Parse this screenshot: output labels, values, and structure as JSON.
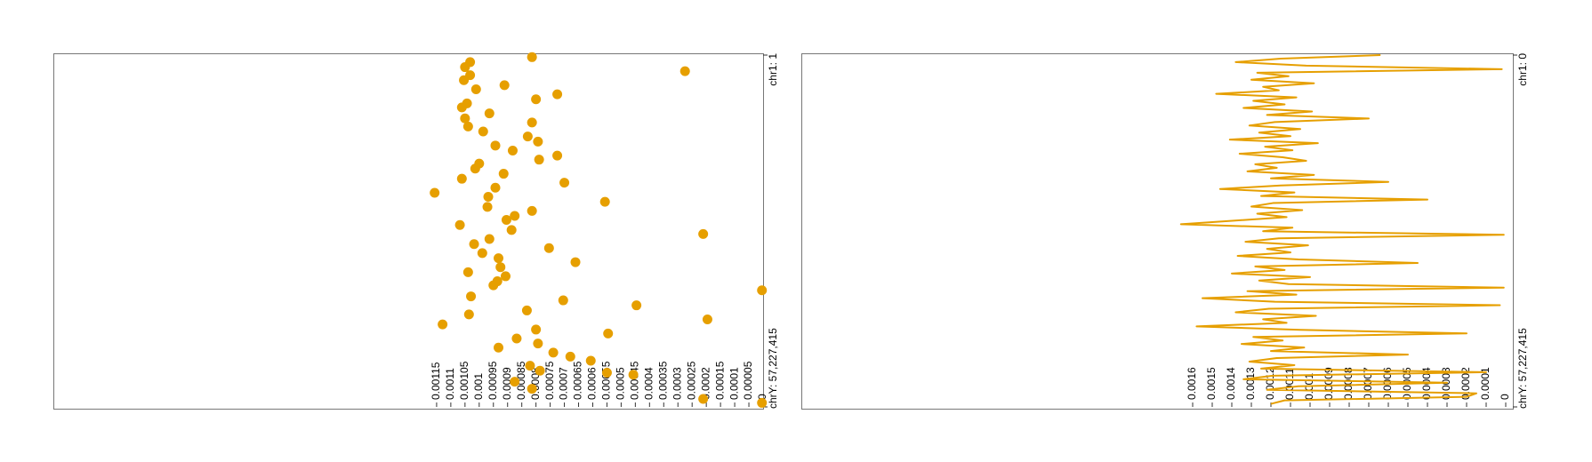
{
  "chart_data": [
    {
      "type": "scatter",
      "color": "#E69F00",
      "xlim": [
        0.0025,
        0
      ],
      "xticks": [
        0.00115,
        0.0011,
        0.00105,
        0.001,
        0.00095,
        0.0009,
        0.00085,
        0.0008,
        0.00075,
        0.0007,
        0.00065,
        0.0006,
        0.00055,
        0.0005,
        0.00045,
        0.0004,
        0.00035,
        0.0003,
        0.00025,
        0.0002,
        0.00015,
        0.0001,
        5e-05,
        0
      ],
      "ylim": [
        1,
        3095677412
      ],
      "yticks": [
        {
          "value": 1,
          "label": "chr1: 1"
        },
        {
          "value": 3095677412,
          "label": "chrY: 57,227,415"
        }
      ],
      "x": [
        18000000,
        62000000,
        106000000,
        177000000,
        221000000,
        265000000,
        142000000,
        301000000,
        345000000,
        389000000,
        425000000,
        460000000,
        513000000,
        557000000,
        593000000,
        628000000,
        672000000,
        716000000,
        761000000,
        796000000,
        840000000,
        884000000,
        920000000,
        955000000,
        999000000,
        1044000000,
        1088000000,
        1123000000,
        1167000000,
        1212000000,
        1247000000,
        1291000000,
        1336000000,
        1371000000,
        1415000000,
        1450000000,
        1495000000,
        1539000000,
        1574000000,
        1618000000,
        1663000000,
        1698000000,
        1742000000,
        1787000000,
        1822000000,
        1866000000,
        1910000000,
        1946000000,
        1990000000,
        2026000000,
        2070000000,
        2123000000,
        2158000000,
        2202000000,
        2247000000,
        2282000000,
        2326000000,
        2370000000,
        2415000000,
        2450000000,
        2494000000,
        2538000000,
        2574000000,
        2618000000,
        2653000000,
        2689000000,
        2733000000,
        2777000000,
        2795000000,
        2812000000,
        2874000000,
        2936000000,
        3025000000,
        3060000000
      ],
      "values": [
        0.000814,
        0.001032,
        0.00105,
        0.001032,
        0.001054,
        0.000911,
        0.000275,
        0.001011,
        0.000725,
        0.0008,
        0.001043,
        0.001061,
        0.000964,
        0.00105,
        0.000814,
        0.001039,
        0.000986,
        0.000829,
        0.000793,
        0.000943,
        0.000882,
        0.000725,
        0.000789,
        0.001,
        0.001014,
        0.000914,
        0.001061,
        0.0007,
        0.000943,
        0.001157,
        0.000968,
        0.000557,
        0.000971,
        0.000814,
        0.000875,
        0.000904,
        0.001068,
        0.000886,
        0.000211,
        0.000964,
        0.001018,
        0.000754,
        0.000989,
        0.000932,
        0.000661,
        0.000925,
        0.001039,
        0.000907,
        0.000936,
        0.00095,
        4e-06,
        0.001029,
        0.000704,
        0.000446,
        0.000832,
        0.001036,
        0.000196,
        0.001129,
        0.0008,
        0.000546,
        0.000868,
        0.000793,
        0.000932,
        0.000739,
        0.000679,
        0.000607,
        0.000821,
        0.000786,
        0.00055,
        0.000457,
        0.000875,
        0.000814,
        0.000211,
        4e-06
      ]
    },
    {
      "type": "line",
      "color": "#E69F00",
      "xlim": [
        0.0036,
        0
      ],
      "xticks": [
        0.0016,
        0.0015,
        0.0014,
        0.0013,
        0.0012,
        0.0011,
        0.001,
        0.0009,
        0.0008,
        0.0007,
        0.0006,
        0.0005,
        0.0004,
        0.0003,
        0.0002,
        0.0001,
        0
      ],
      "ylim": [
        0,
        3095677412
      ],
      "yticks": [
        {
          "value": 0,
          "label": "chr1: 0"
        },
        {
          "value": 3095677412,
          "label": "chrY: 57,227,415"
        }
      ],
      "x": [
        0,
        31000000,
        62000000,
        93000000,
        124000000,
        155000000,
        186000000,
        217000000,
        248000000,
        279000000,
        310000000,
        341000000,
        372000000,
        403000000,
        434000000,
        465000000,
        496000000,
        527000000,
        558000000,
        589000000,
        620000000,
        651000000,
        682000000,
        713000000,
        744000000,
        775000000,
        806000000,
        837000000,
        868000000,
        899000000,
        930000000,
        961000000,
        992000000,
        1023000000,
        1054000000,
        1085000000,
        1116000000,
        1147000000,
        1178000000,
        1209000000,
        1240000000,
        1271000000,
        1302000000,
        1333000000,
        1364000000,
        1395000000,
        1426000000,
        1457000000,
        1488000000,
        1519000000,
        1550000000,
        1581000000,
        1612000000,
        1643000000,
        1674000000,
        1705000000,
        1736000000,
        1767000000,
        1798000000,
        1829000000,
        1860000000,
        1891000000,
        1922000000,
        1953000000,
        1984000000,
        2015000000,
        2046000000,
        2077000000,
        2108000000,
        2139000000,
        2170000000,
        2201000000,
        2232000000,
        2263000000,
        2294000000,
        2325000000,
        2356000000,
        2387000000,
        2418000000,
        2449000000,
        2480000000,
        2511000000,
        2542000000,
        2573000000,
        2604000000,
        2635000000,
        2666000000,
        2697000000,
        2728000000,
        2759000000,
        2790000000,
        2821000000,
        2852000000,
        2883000000,
        2914000000,
        2945000000,
        2976000000,
        3007000000,
        3038000000,
        3069000000
      ],
      "values": [
        0.00064,
        0.00115,
        0.00138,
        0.00102,
        2e-05,
        0.00127,
        0.00111,
        0.0013,
        0.00098,
        0.00124,
        0.00116,
        0.00148,
        0.00107,
        0.00129,
        0.00113,
        0.00134,
        0.00099,
        0.00122,
        0.0007,
        0.00118,
        0.00131,
        0.00105,
        0.00126,
        0.0011,
        0.00141,
        0.00096,
        0.00123,
        0.00109,
        0.00136,
        0.00114,
        0.00102,
        0.00128,
        0.00117,
        0.00132,
        0.00098,
        0.0012,
        0.0006,
        0.00115,
        0.00146,
        0.00108,
        0.00125,
        0.0004,
        0.00119,
        0.0013,
        0.00104,
        0.00127,
        0.00112,
        0.00139,
        0.00166,
        0.00109,
        0.00124,
        1e-05,
        0.00116,
        0.00133,
        0.00101,
        0.00122,
        0.0011,
        0.00137,
        0.00106,
        0.00045,
        0.00128,
        0.00113,
        0.0014,
        0.001,
        0.00126,
        0.00111,
        1e-05,
        0.00132,
        0.00107,
        0.00155,
        0.00118,
        3e-05,
        0.00121,
        0.00138,
        0.00097,
        0.00124,
        0.00112,
        0.00158,
        0.00105,
        0.0002,
        0.00129,
        0.00114,
        0.00135,
        0.00103,
        0.0012,
        0.0005,
        0.00117,
        0.00131,
        0.00108,
        0.00125,
        0.0001,
        0.00119,
        0.00134,
        0.0003,
        0.00106,
        0.00122,
        0.00015,
        0.0002,
        0.00113,
        0.0012
      ]
    }
  ]
}
